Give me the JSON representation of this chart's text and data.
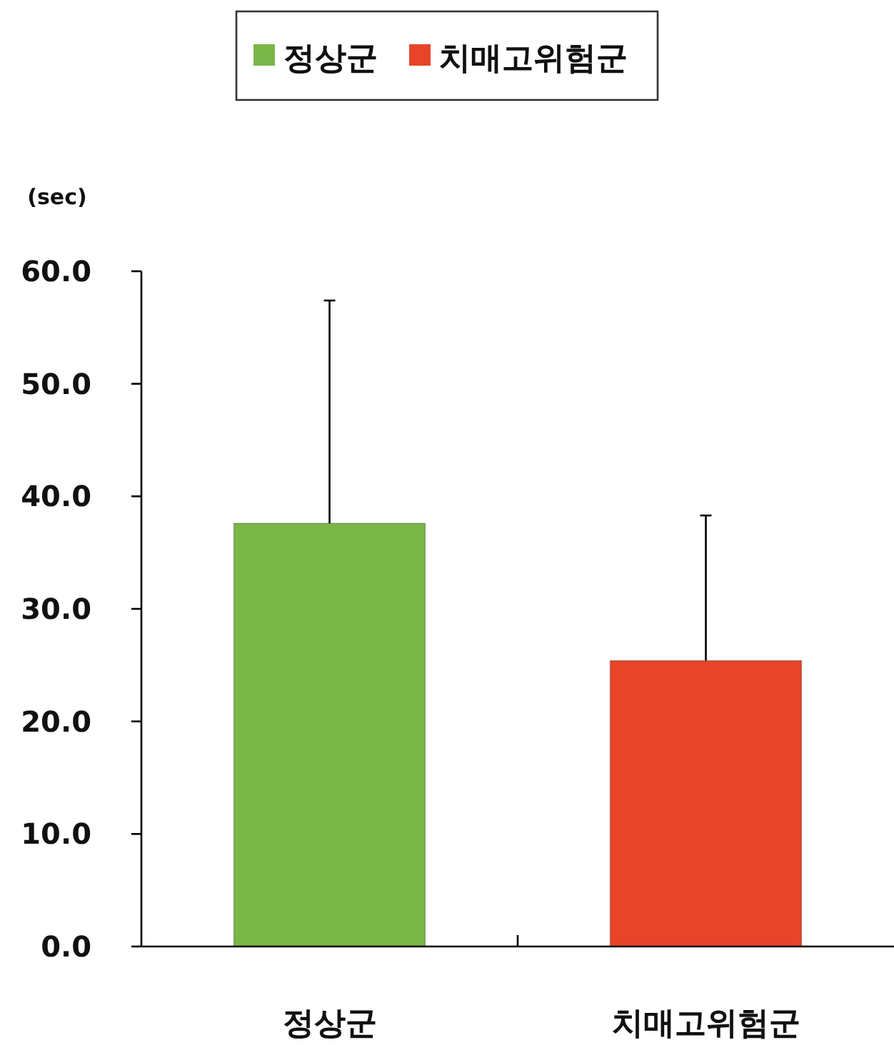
{
  "chart_data": {
    "type": "bar",
    "ylabel": "(sec)",
    "categories": [
      "정상군",
      "치매고위험군"
    ],
    "series": [
      {
        "name": "정상군",
        "color": "#7ab648",
        "values": [
          37.6,
          null
        ],
        "errors": [
          [
            37.6,
            57.4
          ],
          null
        ]
      },
      {
        "name": "치매고위험군",
        "color": "#e8442a",
        "values": [
          null,
          25.4
        ],
        "errors": [
          null,
          [
            25.4,
            38.3
          ]
        ]
      }
    ],
    "ylim": [
      0,
      60
    ],
    "yticks": [
      {
        "value": 0,
        "label": "0.0"
      },
      {
        "value": 10,
        "label": "10.0"
      },
      {
        "value": 20,
        "label": "20.0"
      },
      {
        "value": 30,
        "label": "30.0"
      },
      {
        "value": 40,
        "label": "40.0"
      },
      {
        "value": 50,
        "label": "50.0"
      },
      {
        "value": 60,
        "label": "60.0"
      }
    ],
    "legend": "top"
  }
}
